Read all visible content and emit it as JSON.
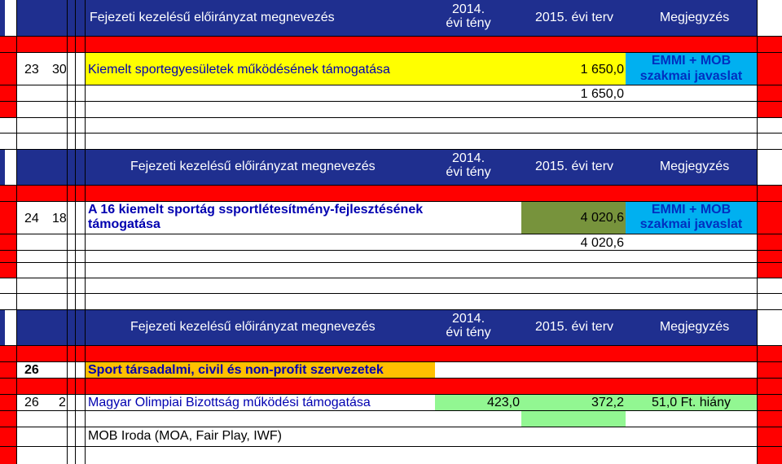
{
  "colors": {
    "header_bg": "#1f2f8f",
    "red": "#ff0000",
    "yellow": "#ffff00",
    "olive": "#77933c",
    "cyan": "#00b0f0",
    "orange": "#ffc000",
    "light_green": "#92f792"
  },
  "blocks": [
    {
      "header": {
        "name": "Fejezeti kezelésű előirányzat megnevezés",
        "year_actual": "2014. évi tény",
        "year_plan": "2015. évi terv",
        "note": "Megjegyzés"
      },
      "row": {
        "col_a": "23",
        "col_b": "30",
        "name": "Kiemelt sportegyesületek működésének támogatása",
        "plan": "1 650,0",
        "subtotal": "1 650,0",
        "note_line1": "EMMI + MOB",
        "note_line2": "szakmai javaslat"
      }
    },
    {
      "header": {
        "name": "Fejezeti kezelésű előirányzat megnevezés",
        "year_actual": "2014. évi tény",
        "year_plan": "2015. évi terv",
        "note": "Megjegyzés"
      },
      "row": {
        "col_a": "24",
        "col_b": "18",
        "name_line1": "A 16 kiemelt sportág ssportlétesítmény-fejlesztésének",
        "name_line2": "támogatása",
        "plan": "4 020,6",
        "subtotal": "4 020,6",
        "note_line1": "EMMI + MOB",
        "note_line2": "szakmai javaslat"
      }
    },
    {
      "header": {
        "name": "Fejezeti kezelésű előirányzat megnevezés",
        "year_actual": "2014. évi tény",
        "year_plan": "2015. évi terv",
        "note": "Megjegyzés"
      },
      "group": {
        "col_a": "26",
        "name": "Sport társadalmi, civil és non-profit szervezetek"
      },
      "row": {
        "col_a": "26",
        "col_b": "2",
        "name": "Magyar Olimpiai Bizottság működési támogatása",
        "actual": "423,0",
        "plan": "372,2",
        "note": "51,0 Ft. hiány"
      },
      "sub": {
        "name": "MOB Iroda (MOA, Fair Play, IWF)"
      }
    }
  ]
}
